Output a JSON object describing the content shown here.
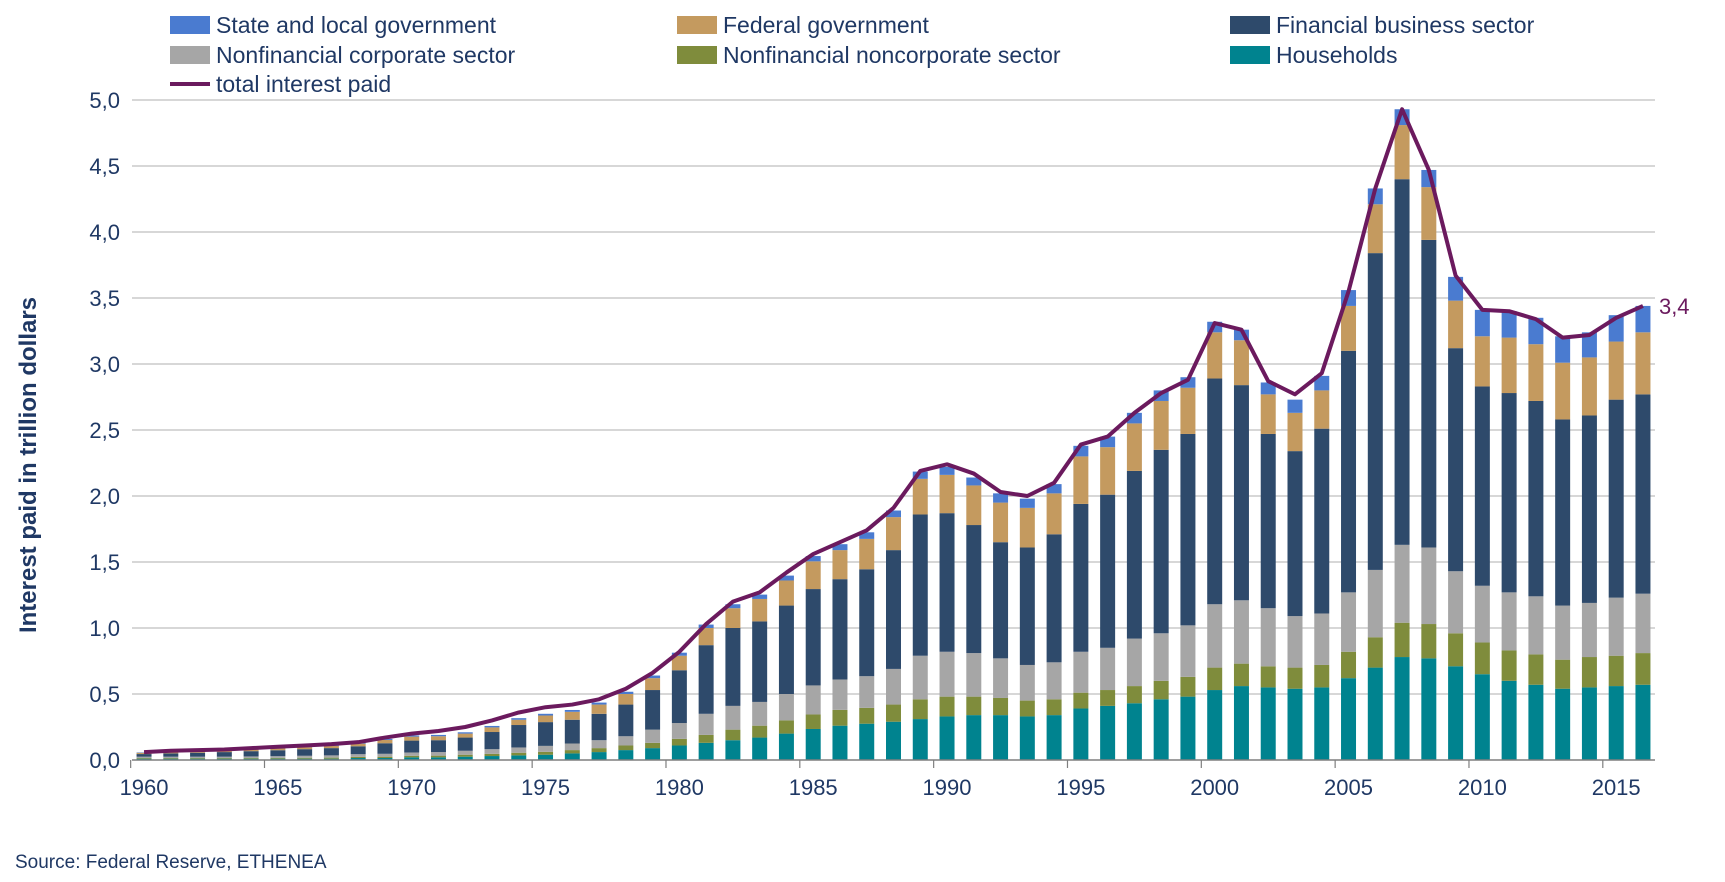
{
  "chart_data": {
    "type": "bar",
    "stacked": true,
    "ylabel": "Interest paid in trillion dollars",
    "ylim": [
      0,
      5
    ],
    "yticks": [
      "0,0",
      "0,5",
      "1,0",
      "1,5",
      "2,0",
      "2,5",
      "3,0",
      "3,5",
      "4,0",
      "4,5",
      "5,0"
    ],
    "ytick_values": [
      0,
      0.5,
      1,
      1.5,
      2,
      2.5,
      3,
      3.5,
      4,
      4.5,
      5
    ],
    "xtick_labels": [
      "1960",
      "1965",
      "1970",
      "1975",
      "1980",
      "1985",
      "1990",
      "1995",
      "2000",
      "2005",
      "2010",
      "2015"
    ],
    "grid": "horizontal",
    "legend_position": "top",
    "x": [
      1960,
      1961,
      1962,
      1963,
      1964,
      1965,
      1966,
      1967,
      1968,
      1969,
      1970,
      1971,
      1972,
      1973,
      1974,
      1975,
      1976,
      1977,
      1978,
      1979,
      1980,
      1981,
      1982,
      1983,
      1984,
      1985,
      1986,
      1987,
      1988,
      1989,
      1990,
      1991,
      1992,
      1993,
      1994,
      1995,
      1996,
      1997,
      1998,
      1999,
      2000,
      2001,
      2002,
      2003,
      2004,
      2005,
      2006,
      2007,
      2008,
      2009,
      2010,
      2011,
      2012,
      2013,
      2014,
      2015,
      2016
    ],
    "series": [
      {
        "name": "Households",
        "color": "#00838f",
        "values": [
          0.01,
          0.01,
          0.01,
          0.01,
          0.01,
          0.01,
          0.01,
          0.01,
          0.015,
          0.015,
          0.02,
          0.02,
          0.025,
          0.03,
          0.035,
          0.04,
          0.05,
          0.06,
          0.075,
          0.09,
          0.11,
          0.13,
          0.15,
          0.17,
          0.2,
          0.235,
          0.26,
          0.275,
          0.29,
          0.31,
          0.33,
          0.34,
          0.34,
          0.33,
          0.34,
          0.39,
          0.41,
          0.43,
          0.46,
          0.48,
          0.53,
          0.56,
          0.55,
          0.54,
          0.55,
          0.62,
          0.7,
          0.78,
          0.77,
          0.71,
          0.65,
          0.6,
          0.57,
          0.54,
          0.55,
          0.56,
          0.57
        ]
      },
      {
        "name": "Nonfinancial noncorporate sector",
        "color": "#7f8c3c",
        "values": [
          0.005,
          0.005,
          0.005,
          0.005,
          0.005,
          0.006,
          0.007,
          0.008,
          0.009,
          0.01,
          0.012,
          0.013,
          0.015,
          0.017,
          0.02,
          0.022,
          0.025,
          0.03,
          0.035,
          0.04,
          0.05,
          0.06,
          0.08,
          0.09,
          0.1,
          0.11,
          0.12,
          0.12,
          0.13,
          0.15,
          0.15,
          0.14,
          0.13,
          0.12,
          0.12,
          0.12,
          0.12,
          0.13,
          0.14,
          0.15,
          0.17,
          0.17,
          0.16,
          0.16,
          0.17,
          0.2,
          0.23,
          0.26,
          0.26,
          0.25,
          0.24,
          0.23,
          0.23,
          0.22,
          0.23,
          0.23,
          0.24
        ]
      },
      {
        "name": "Nonfinancial corporate sector",
        "color": "#a6a6a6",
        "values": [
          0.01,
          0.01,
          0.01,
          0.01,
          0.012,
          0.013,
          0.015,
          0.017,
          0.02,
          0.022,
          0.025,
          0.027,
          0.03,
          0.035,
          0.04,
          0.045,
          0.05,
          0.06,
          0.07,
          0.1,
          0.12,
          0.16,
          0.18,
          0.18,
          0.2,
          0.22,
          0.23,
          0.24,
          0.27,
          0.33,
          0.34,
          0.33,
          0.3,
          0.27,
          0.28,
          0.31,
          0.32,
          0.36,
          0.36,
          0.39,
          0.48,
          0.48,
          0.44,
          0.39,
          0.39,
          0.45,
          0.51,
          0.59,
          0.58,
          0.47,
          0.43,
          0.44,
          0.44,
          0.41,
          0.41,
          0.44,
          0.45
        ]
      },
      {
        "name": "Financial business sector",
        "color": "#2e4a6b",
        "values": [
          0.02,
          0.025,
          0.03,
          0.035,
          0.04,
          0.045,
          0.05,
          0.055,
          0.06,
          0.08,
          0.09,
          0.09,
          0.1,
          0.13,
          0.17,
          0.18,
          0.18,
          0.2,
          0.24,
          0.3,
          0.4,
          0.52,
          0.59,
          0.61,
          0.67,
          0.73,
          0.76,
          0.81,
          0.9,
          1.07,
          1.05,
          0.97,
          0.88,
          0.89,
          0.97,
          1.12,
          1.16,
          1.27,
          1.39,
          1.45,
          1.71,
          1.63,
          1.32,
          1.25,
          1.4,
          1.83,
          2.4,
          2.77,
          2.33,
          1.69,
          1.51,
          1.51,
          1.48,
          1.41,
          1.42,
          1.5,
          1.51
        ]
      },
      {
        "name": "Federal government",
        "color": "#c49a5f",
        "values": [
          0.01,
          0.01,
          0.01,
          0.01,
          0.012,
          0.013,
          0.015,
          0.017,
          0.02,
          0.025,
          0.03,
          0.03,
          0.03,
          0.035,
          0.04,
          0.05,
          0.06,
          0.07,
          0.08,
          0.09,
          0.11,
          0.13,
          0.15,
          0.17,
          0.19,
          0.21,
          0.22,
          0.23,
          0.25,
          0.27,
          0.29,
          0.3,
          0.3,
          0.3,
          0.31,
          0.36,
          0.36,
          0.36,
          0.37,
          0.35,
          0.35,
          0.34,
          0.3,
          0.29,
          0.29,
          0.34,
          0.37,
          0.41,
          0.4,
          0.36,
          0.38,
          0.42,
          0.43,
          0.43,
          0.44,
          0.44,
          0.47
        ]
      },
      {
        "name": "State and local government",
        "color": "#4a7bd0",
        "values": [
          0.003,
          0.003,
          0.004,
          0.004,
          0.005,
          0.005,
          0.006,
          0.006,
          0.007,
          0.008,
          0.009,
          0.01,
          0.01,
          0.011,
          0.012,
          0.013,
          0.014,
          0.015,
          0.017,
          0.02,
          0.023,
          0.026,
          0.03,
          0.033,
          0.037,
          0.04,
          0.045,
          0.05,
          0.05,
          0.055,
          0.06,
          0.06,
          0.07,
          0.07,
          0.07,
          0.08,
          0.08,
          0.08,
          0.08,
          0.08,
          0.08,
          0.08,
          0.09,
          0.1,
          0.11,
          0.12,
          0.12,
          0.12,
          0.13,
          0.18,
          0.2,
          0.2,
          0.2,
          0.2,
          0.19,
          0.2,
          0.2
        ]
      }
    ],
    "line": {
      "name": "total interest paid",
      "color": "#6b1a5e",
      "values": [
        0.06,
        0.07,
        0.075,
        0.08,
        0.09,
        0.1,
        0.11,
        0.12,
        0.135,
        0.17,
        0.2,
        0.22,
        0.25,
        0.3,
        0.36,
        0.4,
        0.42,
        0.46,
        0.54,
        0.66,
        0.82,
        1.03,
        1.2,
        1.27,
        1.42,
        1.56,
        1.65,
        1.74,
        1.91,
        2.19,
        2.24,
        2.17,
        2.03,
        2.0,
        2.1,
        2.39,
        2.45,
        2.63,
        2.78,
        2.88,
        3.31,
        3.26,
        2.87,
        2.77,
        2.93,
        3.55,
        4.33,
        4.93,
        4.47,
        3.67,
        3.41,
        3.4,
        3.34,
        3.2,
        3.22,
        3.35,
        3.44
      ]
    },
    "end_label": "3,4"
  },
  "legend": {
    "items": [
      {
        "label": "State and local government",
        "color": "#4a7bd0",
        "kind": "box"
      },
      {
        "label": "Federal government",
        "color": "#c49a5f",
        "kind": "box"
      },
      {
        "label": "Financial business sector",
        "color": "#2e4a6b",
        "kind": "box"
      },
      {
        "label": "Nonfinancial corporate sector",
        "color": "#a6a6a6",
        "kind": "box"
      },
      {
        "label": "Nonfinancial noncorporate sector",
        "color": "#7f8c3c",
        "kind": "box"
      },
      {
        "label": "Households",
        "color": "#00838f",
        "kind": "box"
      },
      {
        "label": "total interest paid",
        "color": "#6b1a5e",
        "kind": "line"
      }
    ]
  },
  "source": "Source: Federal Reserve, ETHENEA"
}
